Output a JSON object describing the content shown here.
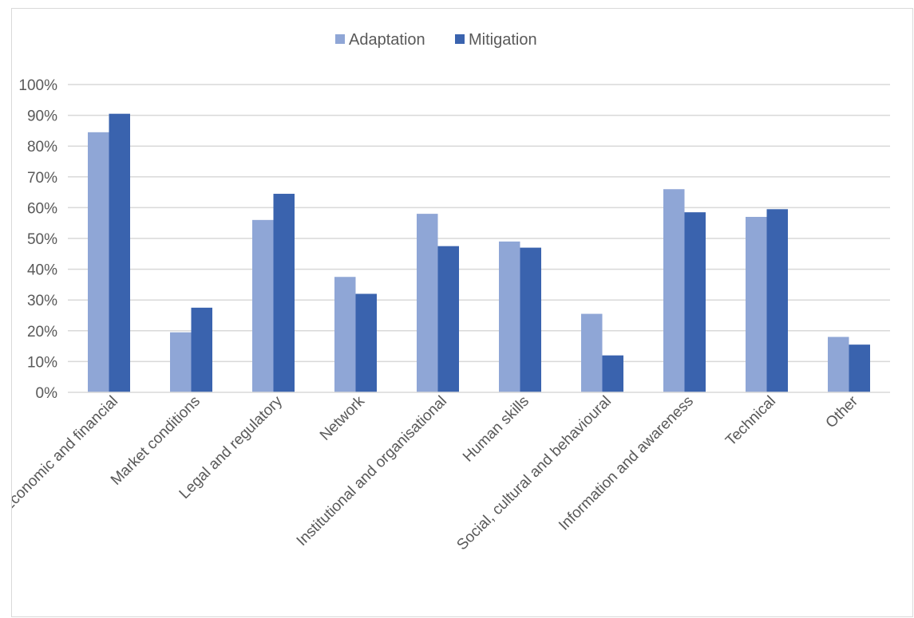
{
  "chart_data": {
    "type": "bar",
    "title": "",
    "xlabel": "",
    "ylabel": "",
    "categories": [
      "Economic and financial",
      "Market conditions",
      "Legal and regulatory",
      "Network",
      "Institutional and organisational",
      "Human skills",
      "Social, cultural and behavioural",
      "Information and awareness",
      "Technical",
      "Other"
    ],
    "series": [
      {
        "name": "Adaptation",
        "color": "#8FA6D6",
        "values": [
          84.5,
          19.5,
          56,
          37.5,
          58,
          49,
          25.5,
          66,
          57,
          18
        ]
      },
      {
        "name": "Mitigation",
        "color": "#3A63AE",
        "values": [
          90.5,
          27.5,
          64.5,
          32,
          47.5,
          47,
          12,
          58.5,
          59.5,
          15.5
        ]
      }
    ],
    "ylim": [
      0,
      100
    ],
    "yticks": [
      0,
      10,
      20,
      30,
      40,
      50,
      60,
      70,
      80,
      90,
      100
    ],
    "ytick_labels": [
      "0%",
      "10%",
      "20%",
      "30%",
      "40%",
      "50%",
      "60%",
      "70%",
      "80%",
      "90%",
      "100%"
    ],
    "grid": true,
    "gridline_color": "#d9d9d9",
    "legend_position": "top-center"
  }
}
